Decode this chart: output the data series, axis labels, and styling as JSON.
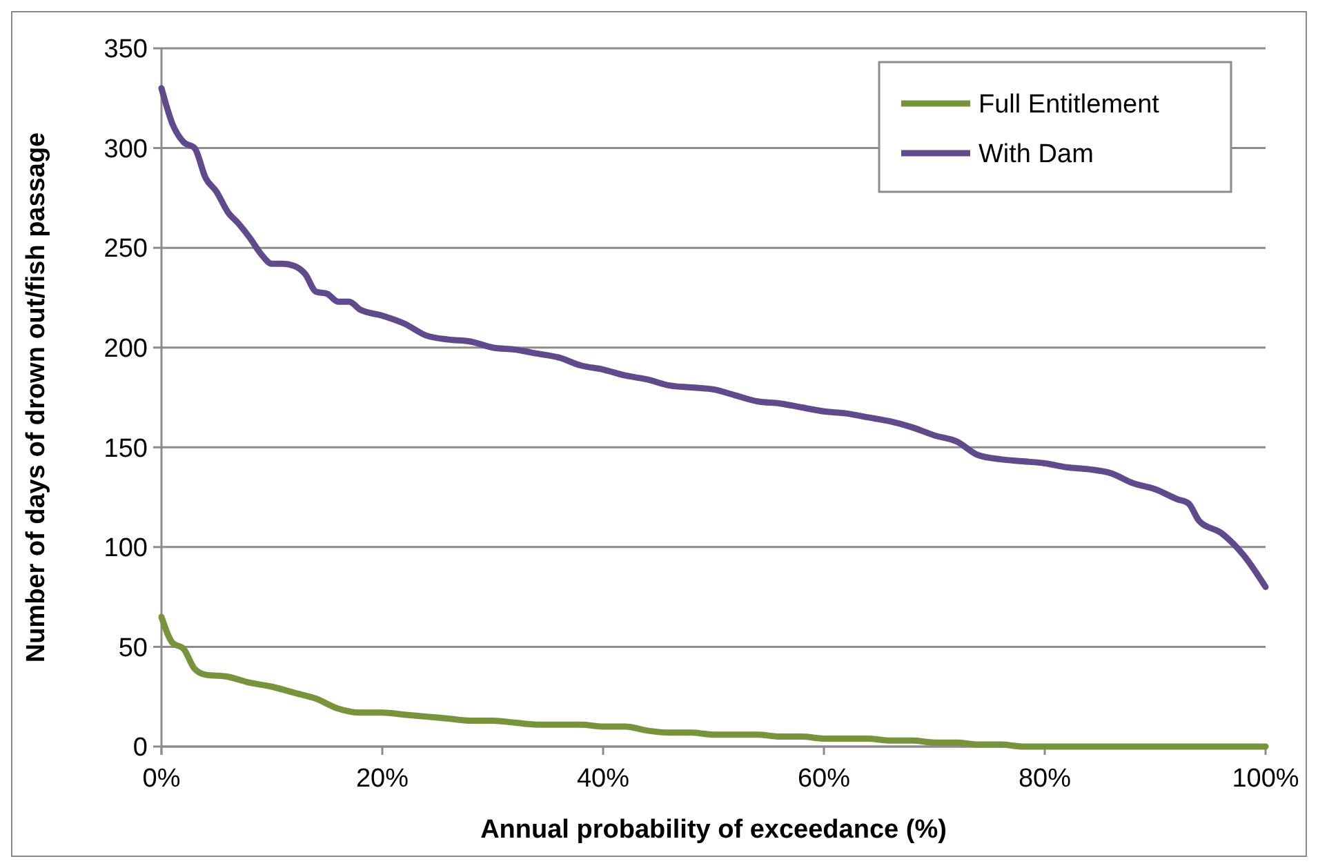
{
  "chart_data": {
    "type": "line",
    "xlabel": "Annual probability of exceedance (%)",
    "ylabel": "Number of days of drown out/fish passage",
    "xlim": [
      0,
      100
    ],
    "xticks": [
      {
        "value": 0,
        "label": "0%"
      },
      {
        "value": 20,
        "label": "20%"
      },
      {
        "value": 40,
        "label": "40%"
      },
      {
        "value": 60,
        "label": "60%"
      },
      {
        "value": 80,
        "label": "80%"
      },
      {
        "value": 100,
        "label": "100%"
      }
    ],
    "ylim": [
      0,
      350
    ],
    "yticks": [
      0,
      50,
      100,
      150,
      200,
      250,
      300,
      350
    ],
    "grid": "y",
    "legend": "top right",
    "marker": "none",
    "line_style": "solid",
    "series": [
      {
        "name": "Full Entitlement",
        "color": "#77933c",
        "x": [
          0,
          1,
          2,
          3,
          4,
          6,
          8,
          10,
          12,
          14,
          16,
          18,
          20,
          22,
          24,
          26,
          28,
          30,
          32,
          34,
          36,
          38,
          40,
          42,
          44,
          46,
          48,
          50,
          52,
          54,
          56,
          58,
          60,
          62,
          64,
          66,
          68,
          70,
          72,
          74,
          76,
          78,
          80,
          90,
          100
        ],
        "values": [
          65,
          52,
          49,
          39,
          36,
          35,
          32,
          30,
          27,
          24,
          19,
          17,
          17,
          16,
          15,
          14,
          13,
          13,
          12,
          11,
          11,
          11,
          10,
          10,
          8,
          7,
          7,
          6,
          6,
          6,
          5,
          5,
          4,
          4,
          4,
          3,
          3,
          2,
          2,
          1,
          1,
          0,
          0,
          0,
          0
        ]
      },
      {
        "name": "With Dam",
        "color": "#5f4b8b",
        "x": [
          0,
          1,
          2,
          3,
          4,
          5,
          6,
          7,
          8,
          9,
          10,
          11,
          12,
          13,
          14,
          15,
          16,
          17,
          18,
          20,
          22,
          24,
          26,
          28,
          30,
          32,
          34,
          36,
          38,
          40,
          42,
          44,
          46,
          48,
          50,
          52,
          54,
          56,
          58,
          60,
          62,
          64,
          66,
          68,
          70,
          72,
          74,
          76,
          78,
          80,
          82,
          84,
          86,
          88,
          90,
          92,
          93,
          94,
          96,
          98,
          100
        ],
        "values": [
          330,
          312,
          303,
          300,
          285,
          278,
          268,
          262,
          255,
          247,
          242,
          242,
          241,
          237,
          228,
          227,
          223,
          223,
          219,
          216,
          212,
          206,
          204,
          203,
          200,
          199,
          197,
          195,
          191,
          189,
          186,
          184,
          181,
          180,
          179,
          176,
          173,
          172,
          170,
          168,
          167,
          165,
          163,
          160,
          156,
          153,
          146,
          144,
          143,
          142,
          140,
          139,
          137,
          132,
          129,
          124,
          122,
          113,
          107,
          96,
          80
        ]
      }
    ]
  }
}
